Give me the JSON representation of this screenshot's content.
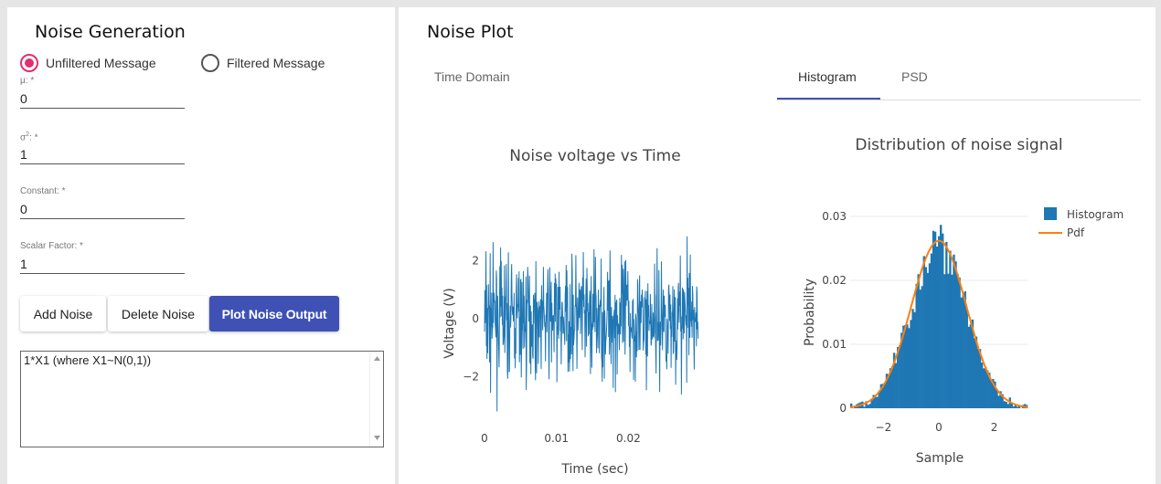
{
  "left": {
    "title": "Noise Generation",
    "radio_unfiltered": "Unfiltered Message",
    "radio_filtered": "Filtered Message",
    "selected": "unfiltered",
    "fields": {
      "mu": {
        "label": "μ: *",
        "value": "0"
      },
      "sigma": {
        "label_base": "σ",
        "label_sup": "2",
        "label_rest": ": *",
        "value": "1"
      },
      "constant": {
        "label": "Constant: *",
        "value": "0"
      },
      "scalar": {
        "label": "Scalar Factor: *",
        "value": "1"
      }
    },
    "buttons": {
      "add": "Add Noise",
      "delete": "Delete Noise",
      "plot": "Plot Noise Output"
    },
    "formula": "1*X1 (where X1~N(0,1))"
  },
  "right": {
    "title": "Noise Plot",
    "tabs": [
      "Time Domain",
      "Histogram",
      "PSD"
    ],
    "active_tab": "Histogram",
    "accent": "#3f51b5"
  },
  "chart_data": [
    {
      "type": "line",
      "title": "Noise voltage vs Time",
      "xlabel": "Time (sec)",
      "ylabel": "Voltage (V)",
      "xlim": [
        0,
        0.0305
      ],
      "ylim": [
        -3.5,
        3.5
      ],
      "xticks": [
        "0",
        "0.01",
        "0.02"
      ],
      "yticks": [
        "−2",
        "0",
        "2"
      ],
      "series": [
        {
          "color": "#1f77b4",
          "description_of_values": "standard normal noise samples, range approx −3.2 to 3.1"
        }
      ]
    },
    {
      "type": "bar",
      "title": "Distribution of noise signal",
      "xlabel": "Sample",
      "ylabel": "Probability",
      "xlim": [
        -3.2,
        3.2
      ],
      "ylim": [
        0,
        0.031
      ],
      "xticks": [
        "−2",
        "0",
        "2"
      ],
      "yticks": [
        "0",
        "0.01",
        "0.02",
        "0.03"
      ],
      "legend": {
        "position": "top-right",
        "entries": [
          "Histogram",
          "Pdf"
        ]
      },
      "series": [
        {
          "name": "Histogram",
          "color": "#1f77b4"
        },
        {
          "name": "Pdf",
          "color": "#ff7f0e"
        }
      ]
    }
  ]
}
